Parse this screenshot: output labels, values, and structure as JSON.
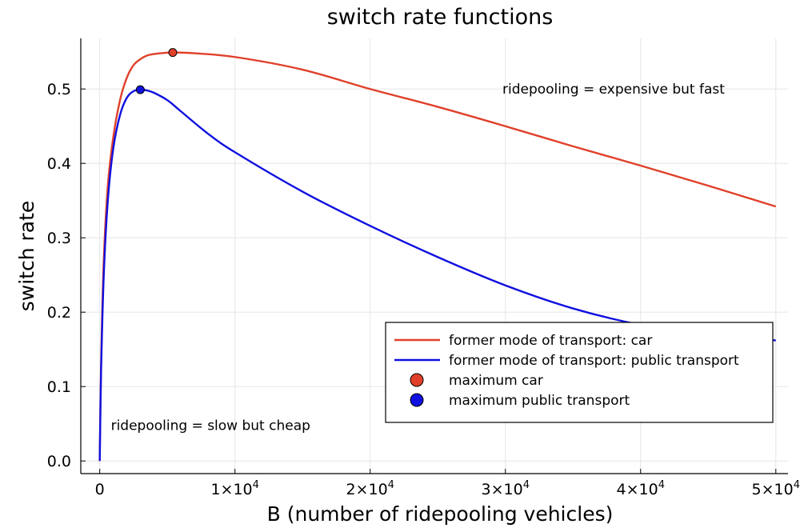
{
  "chart_data": {
    "type": "line",
    "title": "switch rate functions",
    "xlabel": "B (number of ridepooling vehicles)",
    "ylabel": "switch rate",
    "xlim": [
      -1400,
      50900
    ],
    "ylim": [
      -0.017,
      0.568
    ],
    "grid": true,
    "legend_position": "bottom-right",
    "x_ticks": [
      {
        "value": 0,
        "label": "0",
        "exp": ""
      },
      {
        "value": 10000,
        "label": "1×10",
        "exp": "4"
      },
      {
        "value": 20000,
        "label": "2×10",
        "exp": "4"
      },
      {
        "value": 30000,
        "label": "3×10",
        "exp": "4"
      },
      {
        "value": 40000,
        "label": "4×10",
        "exp": "4"
      },
      {
        "value": 50000,
        "label": "5×10",
        "exp": "4"
      }
    ],
    "y_ticks": [
      {
        "value": 0.0,
        "label": "0.0"
      },
      {
        "value": 0.1,
        "label": "0.1"
      },
      {
        "value": 0.2,
        "label": "0.2"
      },
      {
        "value": 0.3,
        "label": "0.3"
      },
      {
        "value": 0.4,
        "label": "0.4"
      },
      {
        "value": 0.5,
        "label": "0.5"
      }
    ],
    "series": [
      {
        "name": "former mode of transport: car",
        "kind": "line",
        "color": "#e0402a",
        "points": [
          [
            0,
            0
          ],
          [
            100,
            0.13
          ],
          [
            300,
            0.27
          ],
          [
            600,
            0.37
          ],
          [
            1000,
            0.435
          ],
          [
            1500,
            0.485
          ],
          [
            2000,
            0.515
          ],
          [
            2500,
            0.532
          ],
          [
            3000,
            0.54
          ],
          [
            3500,
            0.545
          ],
          [
            4000,
            0.547
          ],
          [
            5300,
            0.549
          ],
          [
            7000,
            0.548
          ],
          [
            10000,
            0.543
          ],
          [
            15000,
            0.526
          ],
          [
            20000,
            0.5
          ],
          [
            25000,
            0.476
          ],
          [
            30000,
            0.45
          ],
          [
            35000,
            0.423
          ],
          [
            40000,
            0.397
          ],
          [
            45000,
            0.37
          ],
          [
            50000,
            0.342
          ]
        ]
      },
      {
        "name": "former mode of transport: public transport",
        "kind": "line",
        "color": "#1010e0",
        "points": [
          [
            0,
            0
          ],
          [
            100,
            0.12
          ],
          [
            300,
            0.25
          ],
          [
            600,
            0.35
          ],
          [
            1000,
            0.42
          ],
          [
            1500,
            0.465
          ],
          [
            2000,
            0.488
          ],
          [
            2500,
            0.497
          ],
          [
            3000,
            0.499
          ],
          [
            3500,
            0.498
          ],
          [
            4000,
            0.495
          ],
          [
            5000,
            0.485
          ],
          [
            6000,
            0.47
          ],
          [
            8000,
            0.44
          ],
          [
            10000,
            0.415
          ],
          [
            15000,
            0.362
          ],
          [
            20000,
            0.316
          ],
          [
            25000,
            0.274
          ],
          [
            30000,
            0.236
          ],
          [
            35000,
            0.205
          ],
          [
            40000,
            0.183
          ],
          [
            45000,
            0.17
          ],
          [
            50000,
            0.162
          ]
        ]
      },
      {
        "name": "maximum car",
        "kind": "point",
        "color": "#e0402a",
        "points": [
          [
            5400,
            0.549
          ]
        ]
      },
      {
        "name": "maximum public transport",
        "kind": "point",
        "color": "#1010e0",
        "points": [
          [
            3000,
            0.499
          ]
        ]
      }
    ],
    "annotations": [
      {
        "text": "ridepooling = expensive but fast",
        "x": 38000,
        "y": 0.5
      },
      {
        "text": "ridepooling = slow but cheap",
        "x": 8200,
        "y": 0.048
      }
    ]
  }
}
